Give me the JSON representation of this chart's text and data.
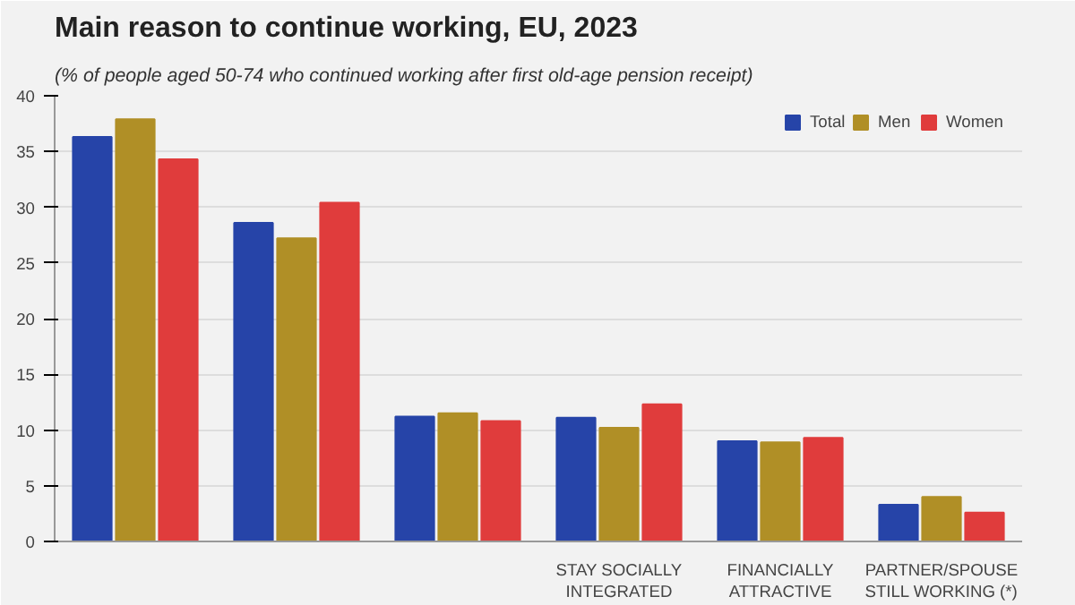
{
  "chart_data": {
    "type": "bar",
    "title": "Main reason to continue working, EU, 2023",
    "subtitle": "(% of people aged 50-74 who continued working after first old-age pension receipt)",
    "categories": [
      null,
      null,
      null,
      "STAY SOCIALLY\nINTEGRATED",
      "FINANCIALLY\nATTRACTIVE",
      "PARTNER/SPOUSE\nSTILL WORKING (*)"
    ],
    "series": [
      {
        "name": "Total",
        "color": "#2644a8",
        "values": [
          36.3,
          28.6,
          11.2,
          11.1,
          9.0,
          3.3
        ]
      },
      {
        "name": "Men",
        "color": "#b08f26",
        "values": [
          37.9,
          27.2,
          11.5,
          10.2,
          8.9,
          4.0
        ]
      },
      {
        "name": "Women",
        "color": "#e03c3c",
        "values": [
          34.3,
          30.4,
          10.8,
          12.3,
          9.3,
          2.6
        ]
      }
    ],
    "ylim": [
      0,
      40
    ],
    "yticks": [
      0,
      5,
      10,
      15,
      20,
      25,
      30,
      35,
      40
    ],
    "grid": "y",
    "legend": "top right"
  }
}
